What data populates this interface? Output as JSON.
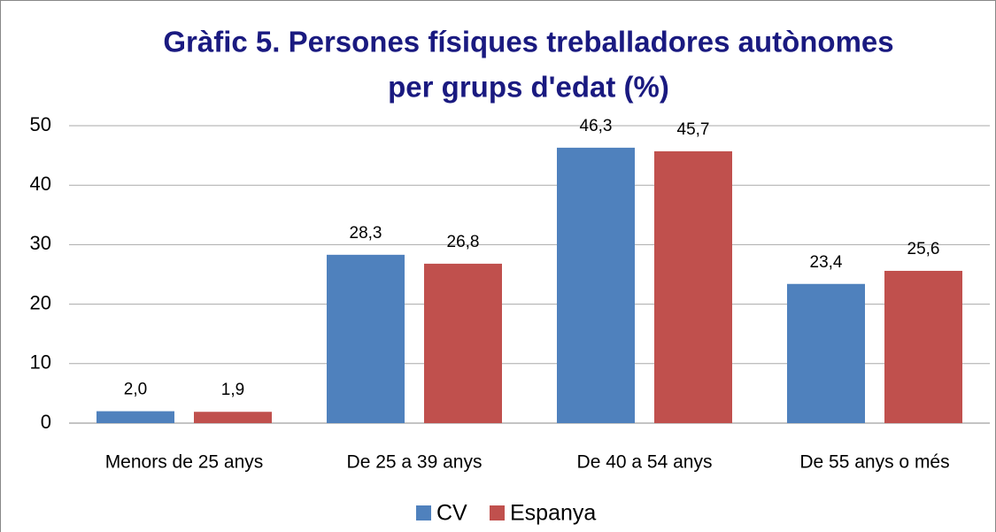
{
  "chart_data": {
    "type": "bar",
    "title": [
      "Gràfic 5. Persones físiques treballadores autònomes",
      "per grups d'edat (%)"
    ],
    "categories": [
      "Menors de 25 anys",
      "De 25 a 39 anys",
      "De 40 a 54 anys",
      "De 55 anys o més"
    ],
    "series": [
      {
        "name": "CV",
        "color": "#4f81bd",
        "values": [
          2.0,
          28.3,
          46.3,
          23.4
        ],
        "value_labels": [
          "2,0",
          "28,3",
          "46,3",
          "23,4"
        ]
      },
      {
        "name": "Espanya",
        "color": "#c0504d",
        "values": [
          1.9,
          26.8,
          45.7,
          25.6
        ],
        "value_labels": [
          "1,9",
          "26,8",
          "45,7",
          "25,6"
        ]
      }
    ],
    "ylim": [
      0,
      50
    ],
    "yticks": [
      0,
      10,
      20,
      30,
      40,
      50
    ],
    "grid": true,
    "legend": "bottom"
  }
}
